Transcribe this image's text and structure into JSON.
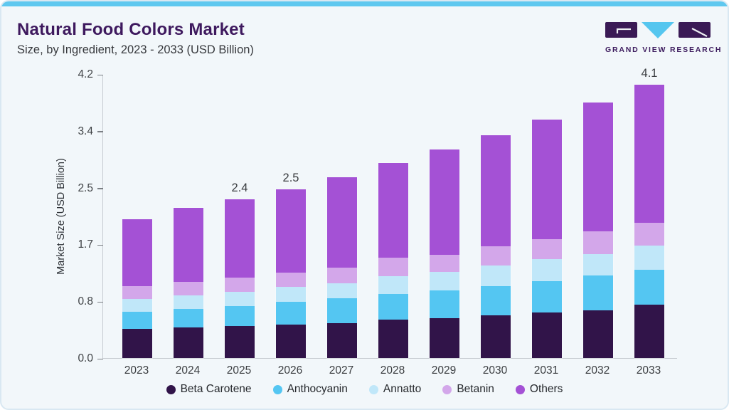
{
  "header": {
    "title": "Natural Food Colors Market",
    "subtitle": "Size, by Ingredient, 2023 - 2033 (USD Billion)"
  },
  "logo": {
    "text": "GRAND VIEW RESEARCH",
    "mark_color": "#3a1a55",
    "triangle_color": "#55c6ef"
  },
  "colors": {
    "accent_top_bar": "#5fc8ef",
    "card_background": "#f2f7fa",
    "title_text": "#3e195e"
  },
  "chart_data": {
    "type": "bar",
    "stacked": true,
    "title": "Natural Food Colors Market",
    "subtitle": "Size, by Ingredient, 2023 - 2033 (USD Billion)",
    "xlabel": "",
    "ylabel": "Market Size (USD Billion)",
    "ylim": [
      0,
      4.2
    ],
    "grid": false,
    "legend_position": "bottom",
    "yticks": [
      {
        "value": 4.2,
        "label": "4.2"
      },
      {
        "value": 3.36,
        "label": "3.4"
      },
      {
        "value": 2.52,
        "label": "2.5"
      },
      {
        "value": 1.68,
        "label": "1.7"
      },
      {
        "value": 0.84,
        "label": "0.8"
      },
      {
        "value": 0.0,
        "label": "0.0"
      }
    ],
    "categories": [
      "2023",
      "2024",
      "2025",
      "2026",
      "2027",
      "2028",
      "2029",
      "2030",
      "2031",
      "2032",
      "2033"
    ],
    "series": [
      {
        "name": "Beta Carotene",
        "color": "#311449",
        "values": [
          0.43,
          0.45,
          0.47,
          0.5,
          0.52,
          0.57,
          0.59,
          0.63,
          0.67,
          0.71,
          0.79
        ]
      },
      {
        "name": "Anthocyanin",
        "color": "#54c6f2",
        "values": [
          0.25,
          0.28,
          0.3,
          0.33,
          0.36,
          0.38,
          0.41,
          0.43,
          0.47,
          0.51,
          0.52
        ]
      },
      {
        "name": "Annatto",
        "color": "#c0e7f9",
        "values": [
          0.19,
          0.2,
          0.21,
          0.22,
          0.23,
          0.26,
          0.27,
          0.31,
          0.32,
          0.32,
          0.35
        ]
      },
      {
        "name": "Betanin",
        "color": "#d3a7ea",
        "values": [
          0.19,
          0.2,
          0.21,
          0.21,
          0.23,
          0.27,
          0.26,
          0.28,
          0.3,
          0.33,
          0.34
        ]
      },
      {
        "name": "Others",
        "color": "#a451d5",
        "values": [
          0.99,
          1.09,
          1.16,
          1.23,
          1.33,
          1.41,
          1.55,
          1.65,
          1.77,
          1.91,
          2.04
        ]
      }
    ],
    "bar_labels": {
      "2025": "2.4",
      "2026": "2.5",
      "2033": "4.1"
    }
  }
}
